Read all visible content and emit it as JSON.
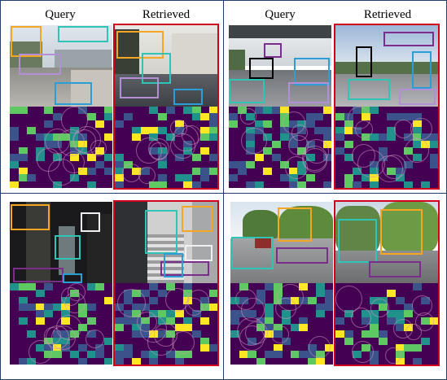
{
  "figure": {
    "headers": {
      "top_left_query": "Query",
      "top_left_retrieved": "Retrieved",
      "top_right_query": "Query",
      "top_right_retrieved": "Retrieved"
    },
    "colors": {
      "panel_border": "#1f3f6e",
      "retrieved_frame": "#d0021b",
      "heatmap_background": "#440154",
      "viridis": [
        "#440154",
        "#3b528b",
        "#21918c",
        "#5ec962",
        "#fde725"
      ],
      "box_colors": [
        "#f5a623",
        "#2ec4b6",
        "#b38fd6",
        "#2a9fd6",
        "#000000",
        "#7b2d8e",
        "#f0f0f0"
      ]
    },
    "panels": [
      {
        "name": "street-sidewalk",
        "query_box_colors": [
          "#f5a623",
          "#2ec4b6",
          "#b38fd6",
          "#2a9fd6"
        ],
        "retrieved_box_colors": [
          "#f5a623",
          "#2ec4b6",
          "#b38fd6",
          "#2a9fd6"
        ]
      },
      {
        "name": "city-road-overpass",
        "query_box_colors": [
          "#2ec4b6",
          "#000000",
          "#7b2d8e",
          "#2a9fd6",
          "#b38fd6"
        ],
        "retrieved_box_colors": [
          "#2ec4b6",
          "#000000",
          "#7b2d8e",
          "#2a9fd6",
          "#b38fd6"
        ]
      },
      {
        "name": "indoor-corridor",
        "query_box_colors": [
          "#f5a623",
          "#2ec4b6",
          "#f0f0f0",
          "#7b2d8e",
          "#2a9fd6"
        ],
        "retrieved_box_colors": [
          "#f5a623",
          "#2ec4b6",
          "#f0f0f0",
          "#7b2d8e",
          "#2a9fd6"
        ]
      },
      {
        "name": "tree-lined-street",
        "query_box_colors": [
          "#f5a623",
          "#2ec4b6",
          "#7b2d8e"
        ],
        "retrieved_box_colors": [
          "#f5a623",
          "#2ec4b6",
          "#7b2d8e"
        ]
      }
    ]
  }
}
